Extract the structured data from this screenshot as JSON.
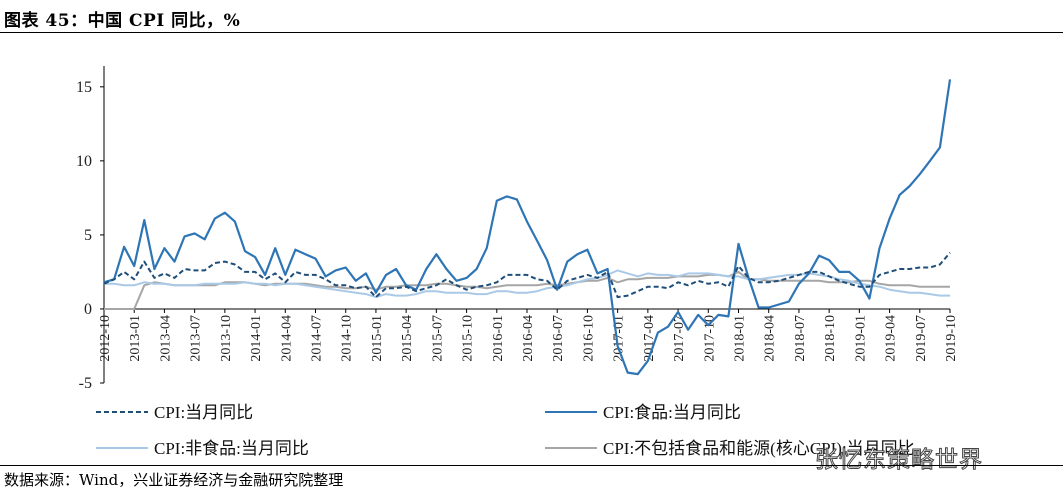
{
  "figure": {
    "title": "图表 45：中国 CPI 同比，%",
    "source": "数据来源：Wind，兴业证券经济与金融研究院整理",
    "watermark": "张忆东策略世界"
  },
  "chart_data": {
    "type": "line",
    "ylim": [
      -5,
      16
    ],
    "yticks": [
      -5,
      0,
      5,
      10,
      15
    ],
    "x_start": "2012-10",
    "x_end": "2019-10",
    "xtick_labels": [
      "2012-10",
      "2013-01",
      "2013-04",
      "2013-07",
      "2013-10",
      "2014-01",
      "2014-04",
      "2014-07",
      "2014-10",
      "2015-01",
      "2015-04",
      "2015-07",
      "2015-10",
      "2016-01",
      "2016-04",
      "2016-07",
      "2016-10",
      "2017-01",
      "2017-04",
      "2017-07",
      "2017-10",
      "2018-01",
      "2018-04",
      "2018-07",
      "2018-10",
      "2019-01",
      "2019-04",
      "2019-07",
      "2019-10"
    ],
    "legend_placement": "bottom",
    "series": [
      {
        "name": "CPI:当月同比",
        "color": "#1f4e79",
        "style": "dashed",
        "values": [
          1.7,
          2.0,
          2.5,
          2.0,
          3.2,
          2.1,
          2.4,
          2.1,
          2.7,
          2.6,
          2.6,
          3.1,
          3.2,
          3.0,
          2.5,
          2.5,
          2.0,
          2.4,
          1.8,
          2.5,
          2.3,
          2.3,
          2.0,
          1.6,
          1.6,
          1.4,
          1.5,
          0.8,
          1.4,
          1.4,
          1.5,
          1.2,
          1.4,
          1.6,
          2.0,
          1.6,
          1.3,
          1.5,
          1.6,
          1.8,
          2.3,
          2.3,
          2.3,
          2.0,
          1.9,
          1.3,
          1.9,
          2.1,
          2.3,
          2.1,
          2.5,
          0.8,
          0.9,
          1.2,
          1.5,
          1.5,
          1.4,
          1.8,
          1.6,
          1.9,
          1.7,
          1.8,
          1.5,
          2.9,
          2.1,
          1.8,
          1.8,
          1.9,
          2.1,
          2.3,
          2.5,
          2.5,
          2.2,
          1.9,
          1.7,
          1.5,
          1.5,
          2.3,
          2.5,
          2.7,
          2.7,
          2.8,
          2.8,
          3.0,
          3.8
        ]
      },
      {
        "name": "CPI:食品:当月同比",
        "color": "#2e75b6",
        "style": "solid",
        "values": [
          1.8,
          2.0,
          4.2,
          2.9,
          6.0,
          2.7,
          4.1,
          3.2,
          4.9,
          5.1,
          4.7,
          6.1,
          6.5,
          5.9,
          3.9,
          3.5,
          2.3,
          4.1,
          2.3,
          4.0,
          3.7,
          3.4,
          2.2,
          2.6,
          2.8,
          1.9,
          2.4,
          1.1,
          2.3,
          2.7,
          1.6,
          1.3,
          2.7,
          3.7,
          2.7,
          1.9,
          2.1,
          2.7,
          4.1,
          7.3,
          7.6,
          7.4,
          5.9,
          4.6,
          3.3,
          1.3,
          3.2,
          3.7,
          4.0,
          2.4,
          2.7,
          -2.5,
          -4.3,
          -4.4,
          -3.5,
          -1.6,
          -1.2,
          -0.2,
          -1.4,
          -0.4,
          -1.1,
          -0.4,
          -0.5,
          4.4,
          2.1,
          0.1,
          0.1,
          0.3,
          0.5,
          1.7,
          2.4,
          3.6,
          3.3,
          2.5,
          2.5,
          1.9,
          0.7,
          4.1,
          6.1,
          7.7,
          8.3,
          9.1,
          10.0,
          10.9,
          15.5
        ]
      },
      {
        "name": "CPI:非食品:当月同比",
        "color": "#a9c9e6",
        "style": "solid",
        "values": [
          1.7,
          1.7,
          1.6,
          1.6,
          1.8,
          1.7,
          1.7,
          1.6,
          1.6,
          1.6,
          1.7,
          1.7,
          1.7,
          1.7,
          1.8,
          1.7,
          1.7,
          1.6,
          1.7,
          1.7,
          1.6,
          1.5,
          1.4,
          1.3,
          1.2,
          1.1,
          1.0,
          0.8,
          1.0,
          0.9,
          0.9,
          1.0,
          1.2,
          1.2,
          1.1,
          1.1,
          1.1,
          1.0,
          1.0,
          1.2,
          1.2,
          1.1,
          1.1,
          1.2,
          1.4,
          1.5,
          1.6,
          1.8,
          2.0,
          2.1,
          2.3,
          2.6,
          2.4,
          2.2,
          2.4,
          2.3,
          2.3,
          2.2,
          2.4,
          2.4,
          2.4,
          2.3,
          2.2,
          2.2,
          2.0,
          2.0,
          2.1,
          2.2,
          2.3,
          2.3,
          2.4,
          2.3,
          2.2,
          2.0,
          1.9,
          1.7,
          1.6,
          1.5,
          1.3,
          1.2,
          1.1,
          1.1,
          1.0,
          0.9,
          0.9
        ]
      },
      {
        "name": "CPI:不包括食品和能源(核心CPI):当月同比",
        "color": "#a6a6a6",
        "style": "solid",
        "values": [
          0.0,
          0.0,
          0.0,
          0.0,
          1.6,
          1.8,
          1.7,
          1.6,
          1.6,
          1.6,
          1.6,
          1.6,
          1.8,
          1.8,
          1.8,
          1.7,
          1.6,
          1.7,
          1.7,
          1.7,
          1.7,
          1.6,
          1.5,
          1.5,
          1.4,
          1.4,
          1.5,
          1.3,
          1.5,
          1.5,
          1.6,
          1.6,
          1.6,
          1.7,
          1.7,
          1.6,
          1.5,
          1.5,
          1.4,
          1.5,
          1.6,
          1.6,
          1.6,
          1.6,
          1.7,
          1.6,
          1.7,
          1.8,
          1.9,
          1.9,
          2.1,
          1.8,
          2.0,
          2.0,
          2.1,
          2.1,
          2.1,
          2.2,
          2.2,
          2.2,
          2.3,
          2.3,
          2.2,
          2.5,
          2.0,
          2.0,
          1.9,
          1.9,
          1.9,
          1.9,
          1.9,
          1.9,
          1.8,
          1.8,
          1.8,
          1.9,
          1.9,
          1.7,
          1.6,
          1.6,
          1.6,
          1.5,
          1.5,
          1.5,
          1.5
        ]
      }
    ]
  }
}
